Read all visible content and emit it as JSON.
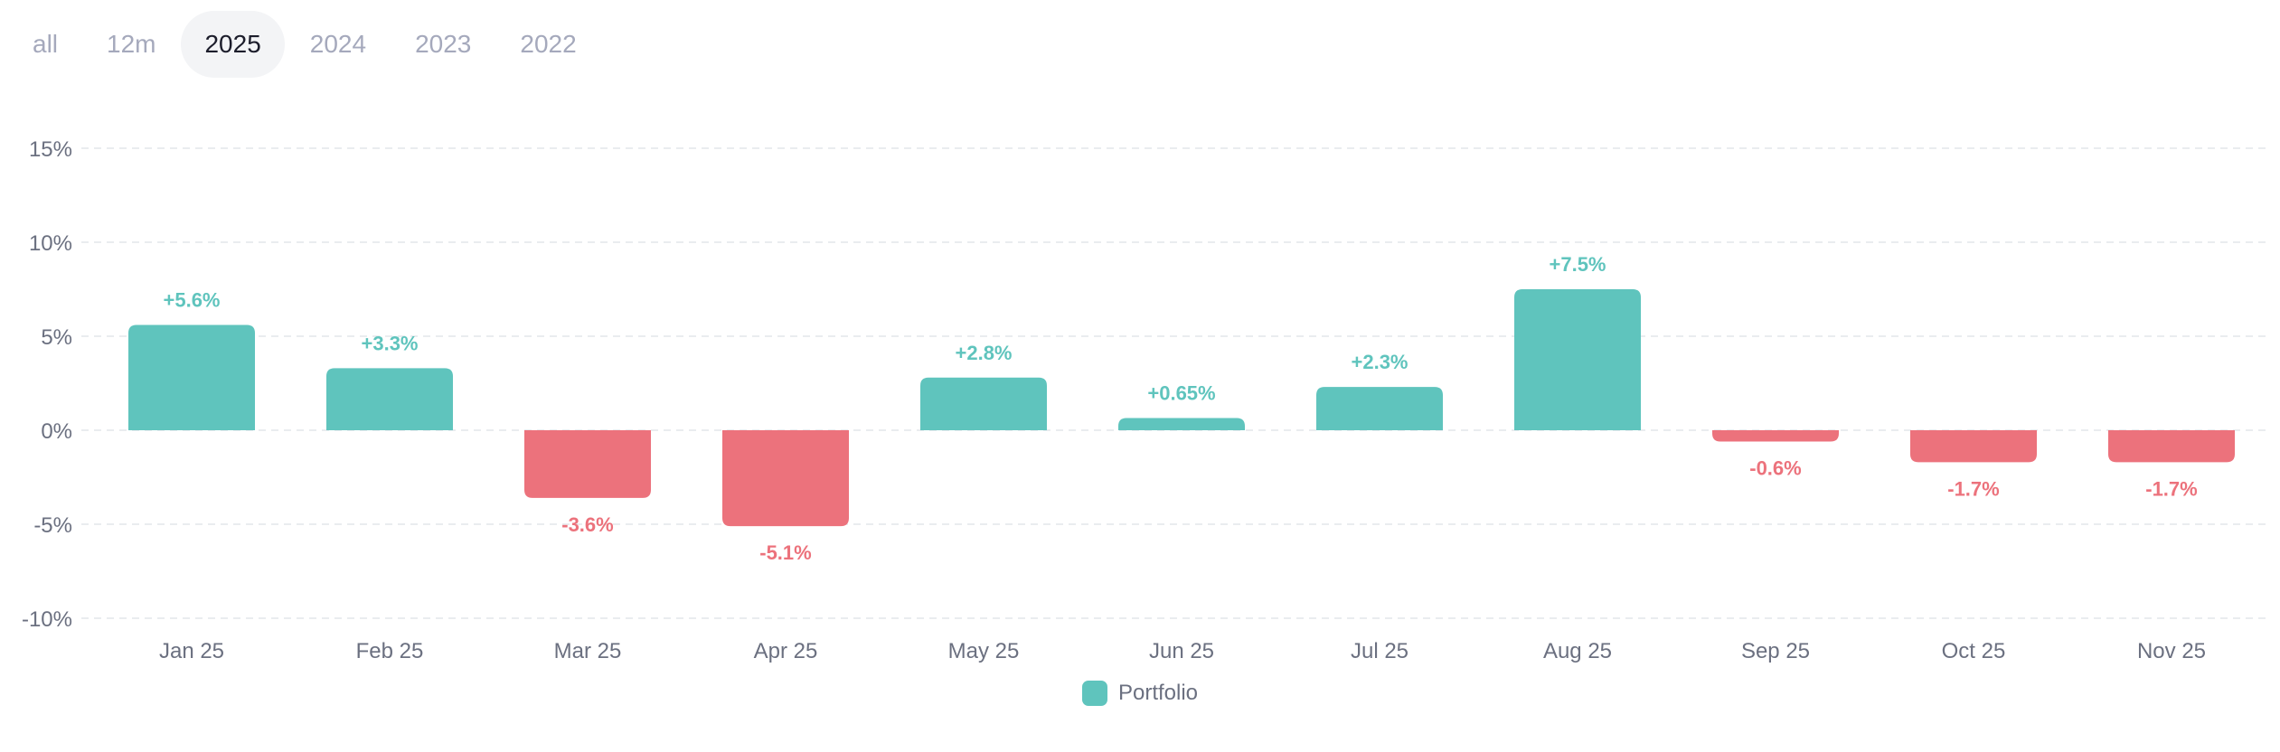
{
  "period_tabs": {
    "items": [
      "all",
      "12m",
      "2025",
      "2024",
      "2023",
      "2022"
    ],
    "selected": "2025"
  },
  "colors": {
    "positive": "#5fc4bd",
    "negative": "#ec727c",
    "axis_text": "#6b7080",
    "grid": "#e3e5ea"
  },
  "legend": {
    "label": "Portfolio"
  },
  "chart_data": {
    "type": "bar",
    "categories": [
      "Jan 25",
      "Feb 25",
      "Mar 25",
      "Apr 25",
      "May 25",
      "Jun 25",
      "Jul 25",
      "Aug 25",
      "Sep 25",
      "Oct 25",
      "Nov 25"
    ],
    "series": [
      {
        "name": "Portfolio",
        "values": [
          5.6,
          3.3,
          -3.6,
          -5.1,
          2.8,
          0.65,
          2.3,
          7.5,
          -0.6,
          -1.7,
          -1.7
        ],
        "value_labels": [
          "+5.6%",
          "+3.3%",
          "-3.6%",
          "-5.1%",
          "+2.8%",
          "+0.65%",
          "+2.3%",
          "+7.5%",
          "-0.6%",
          "-1.7%",
          "-1.7%"
        ]
      }
    ],
    "y_ticks": [
      15,
      10,
      5,
      0,
      -5,
      -10
    ],
    "y_tick_labels": [
      "15%",
      "10%",
      "5%",
      "0%",
      "-5%",
      "-10%"
    ],
    "ylim": [
      -10,
      15
    ],
    "grid": true,
    "legend_position": "bottom-center",
    "title": "",
    "xlabel": "",
    "ylabel": ""
  }
}
